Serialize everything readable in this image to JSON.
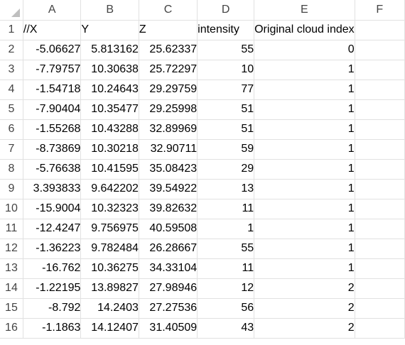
{
  "columns": [
    "A",
    "B",
    "C",
    "D",
    "E",
    "F"
  ],
  "header_row": {
    "row": "1",
    "cells": [
      "//X",
      "Y",
      "Z",
      "intensity",
      "Original cloud index",
      ""
    ]
  },
  "rows": [
    {
      "row": "2",
      "cells": [
        "-5.06627",
        "5.813162",
        "25.62337",
        "55",
        "0",
        ""
      ]
    },
    {
      "row": "3",
      "cells": [
        "-7.79757",
        "10.30638",
        "25.72297",
        "10",
        "1",
        ""
      ]
    },
    {
      "row": "4",
      "cells": [
        "-1.54718",
        "10.24643",
        "29.29759",
        "77",
        "1",
        ""
      ]
    },
    {
      "row": "5",
      "cells": [
        "-7.90404",
        "10.35477",
        "29.25998",
        "51",
        "1",
        ""
      ]
    },
    {
      "row": "6",
      "cells": [
        "-1.55268",
        "10.43288",
        "32.89969",
        "51",
        "1",
        ""
      ]
    },
    {
      "row": "7",
      "cells": [
        "-8.73869",
        "10.30218",
        "32.90711",
        "59",
        "1",
        ""
      ]
    },
    {
      "row": "8",
      "cells": [
        "-5.76638",
        "10.41595",
        "35.08423",
        "29",
        "1",
        ""
      ]
    },
    {
      "row": "9",
      "cells": [
        "3.393833",
        "9.642202",
        "39.54922",
        "13",
        "1",
        ""
      ]
    },
    {
      "row": "10",
      "cells": [
        "-15.9004",
        "10.32323",
        "39.82632",
        "11",
        "1",
        ""
      ]
    },
    {
      "row": "11",
      "cells": [
        "-12.4247",
        "9.756975",
        "40.59508",
        "1",
        "1",
        ""
      ]
    },
    {
      "row": "12",
      "cells": [
        "-1.36223",
        "9.782484",
        "26.28667",
        "55",
        "1",
        ""
      ]
    },
    {
      "row": "13",
      "cells": [
        "-16.762",
        "10.36275",
        "34.33104",
        "11",
        "1",
        ""
      ]
    },
    {
      "row": "14",
      "cells": [
        "-1.22195",
        "13.89827",
        "27.98946",
        "12",
        "2",
        ""
      ]
    },
    {
      "row": "15",
      "cells": [
        "-8.792",
        "14.2403",
        "27.27536",
        "56",
        "2",
        ""
      ]
    },
    {
      "row": "16",
      "cells": [
        "-1.1863",
        "14.12407",
        "31.40509",
        "43",
        "2",
        ""
      ]
    }
  ]
}
